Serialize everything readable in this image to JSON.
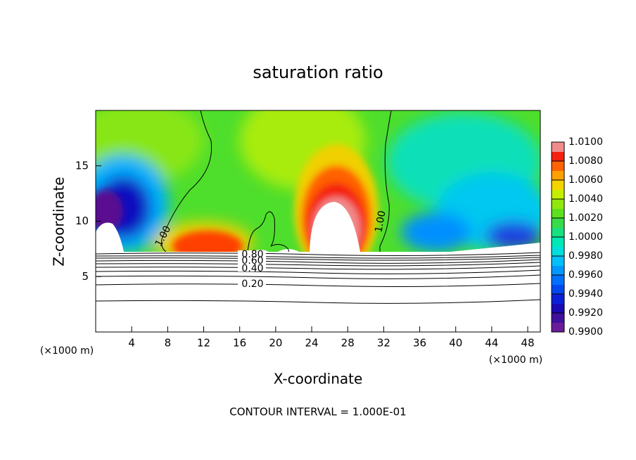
{
  "chart_data": {
    "type": "contour",
    "title": "saturation ratio",
    "xlabel": "X-coordinate",
    "ylabel": "Z-coordinate",
    "xunit": "(×1000 m)",
    "xlim": [
      0,
      49.4
    ],
    "xticks": [
      4,
      8,
      12,
      16,
      20,
      24,
      28,
      32,
      36,
      40,
      44,
      48
    ],
    "ylim": [
      0,
      20
    ],
    "yticks": [
      5,
      10,
      15
    ],
    "clim": [
      0.99,
      1.01
    ],
    "cticks": [
      {
        "value": 0.99,
        "label": "0.9900"
      },
      {
        "value": 0.992,
        "label": "0.9920"
      },
      {
        "value": 0.994,
        "label": "0.9940"
      },
      {
        "value": 0.996,
        "label": "0.9960"
      },
      {
        "value": 0.998,
        "label": "0.9980"
      },
      {
        "value": 1.0,
        "label": "1.0000"
      },
      {
        "value": 1.002,
        "label": "1.0020"
      },
      {
        "value": 1.004,
        "label": "1.0040"
      },
      {
        "value": 1.006,
        "label": "1.0060"
      },
      {
        "value": 1.008,
        "label": "1.0080"
      },
      {
        "value": 1.01,
        "label": "1.0100"
      }
    ],
    "colors": [
      "#6a1b9a",
      "#40109e",
      "#1a0ab4",
      "#0a20d8",
      "#0048f0",
      "#0070ff",
      "#0098ff",
      "#00c0f8",
      "#00dede",
      "#00e8b4",
      "#18e080",
      "#38dc48",
      "#5ce020",
      "#90e80c",
      "#c4f000",
      "#f4d400",
      "#ffa000",
      "#ff6200",
      "#f42010",
      "#f08c8c"
    ],
    "contours": [
      {
        "value": 1.0,
        "label": "1.00"
      },
      {
        "value": 0.8,
        "label": "0.80"
      },
      {
        "value": 0.6,
        "label": "0.60"
      },
      {
        "value": 0.4,
        "label": "0.40"
      },
      {
        "value": 0.2,
        "label": "0.20"
      }
    ],
    "footnote": "CONTOUR INTERVAL = 1.000E-01"
  }
}
